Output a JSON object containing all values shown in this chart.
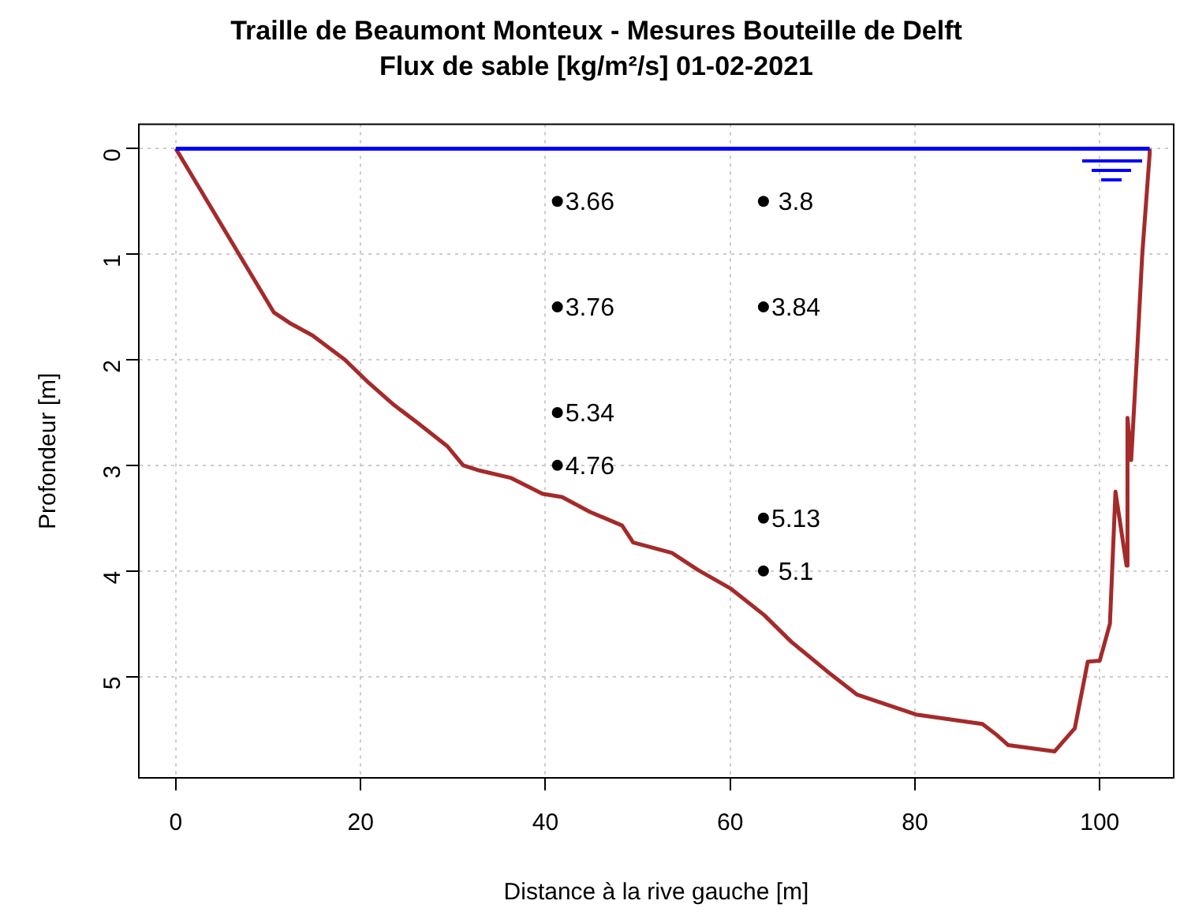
{
  "chart_data": {
    "type": "line",
    "title": "Traille de Beaumont Monteux - Mesures Bouteille de Delft",
    "subtitle": "Flux de sable [kg/m²/s] 01-02-2021",
    "xlabel": "Distance à la rive gauche [m]",
    "ylabel": "Profondeur [m]",
    "xlim": [
      -4,
      108
    ],
    "ylim": [
      5.96,
      -0.23
    ],
    "xticks": [
      0,
      20,
      40,
      60,
      80,
      100
    ],
    "yticks": [
      0,
      1,
      2,
      3,
      4,
      5
    ],
    "grid": true,
    "legend": false,
    "series": [
      {
        "color": "#0000ff",
        "marker": "none",
        "x": [
          0,
          105.4
        ],
        "values": [
          0,
          0
        ]
      },
      {
        "color": "#a52a2a",
        "marker": "none",
        "x": [
          0,
          10.6,
          12.3,
          14.8,
          18.3,
          20.9,
          23.5,
          26.2,
          29.4,
          31.1,
          32.9,
          36.3,
          39.7,
          41.8,
          44.8,
          48.3,
          49.5,
          53.7,
          56.5,
          60.1,
          63.7,
          66.6,
          70.9,
          73.7,
          80.1,
          87.3,
          88.8,
          90.1,
          95.1,
          97.3,
          98.7,
          100,
          101.1,
          101.7,
          102.9,
          103,
          103.4,
          104,
          104.6,
          105.4,
          105.4
        ],
        "values": [
          0,
          1.55,
          1.65,
          1.77,
          2.0,
          2.22,
          2.42,
          2.6,
          2.82,
          3.0,
          3.05,
          3.12,
          3.27,
          3.3,
          3.44,
          3.57,
          3.73,
          3.83,
          3.99,
          4.17,
          4.42,
          4.67,
          4.98,
          5.17,
          5.36,
          5.45,
          5.55,
          5.65,
          5.71,
          5.49,
          4.86,
          4.85,
          4.5,
          3.25,
          3.95,
          2.55,
          2.95,
          2.0,
          1.0,
          0.05,
          0
        ]
      },
      {
        "type": "scatter",
        "color": "#000000",
        "marker": "circle",
        "x": [
          41.3,
          41.3,
          41.3,
          41.3,
          63.6,
          63.6,
          63.6,
          63.6
        ],
        "values": [
          0.5,
          1.5,
          2.5,
          3,
          0.5,
          1.5,
          3.5,
          4
        ]
      }
    ],
    "annotations": [
      "3.66",
      "3.76",
      "5.34",
      "4.76",
      " 3.8",
      "3.84",
      "5.13",
      " 5.1"
    ]
  }
}
